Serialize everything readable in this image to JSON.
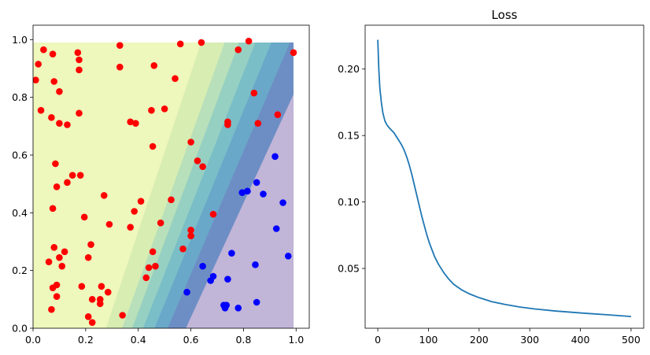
{
  "chart_data": [
    {
      "type": "scatter",
      "title": "",
      "xlabel": "",
      "ylabel": "",
      "xlim": [
        0,
        1.05
      ],
      "ylim": [
        0,
        1.05
      ],
      "grid": false,
      "legend": "none",
      "x_ticks": [
        "0.0",
        "0.2",
        "0.4",
        "0.6",
        "0.8",
        "1.0"
      ],
      "y_ticks": [
        "0.0",
        "0.2",
        "0.4",
        "0.6",
        "0.8",
        "1.0"
      ],
      "decision_regions": {
        "extent": [
          0,
          0.99
        ],
        "colors": [
          "#edf7b8",
          "#d6ecb1",
          "#b6dfbb",
          "#94cfc2",
          "#78bdc7",
          "#68a6c9",
          "#6e8cc4",
          "#c6b7d9"
        ],
        "boundaries": [
          {
            "y_at_x0": -0.76,
            "slope": 2.74
          },
          {
            "y_at_x0": -0.86,
            "slope": 2.54
          },
          {
            "y_at_x0": -0.92,
            "slope": 2.44
          },
          {
            "y_at_x0": -0.97,
            "slope": 2.32
          },
          {
            "y_at_x0": -1.03,
            "slope": 2.23
          },
          {
            "y_at_x0": -1.09,
            "slope": 2.13
          },
          {
            "y_at_x0": -1.15,
            "slope": 1.98
          }
        ]
      },
      "series": [
        {
          "color": "#ff0000",
          "points": [
            [
              0.01,
              0.86
            ],
            [
              0.02,
              0.915
            ],
            [
              0.03,
              0.755
            ],
            [
              0.04,
              0.965
            ],
            [
              0.075,
              0.95
            ],
            [
              0.08,
              0.855
            ],
            [
              0.07,
              0.73
            ],
            [
              0.1,
              0.82
            ],
            [
              0.085,
              0.57
            ],
            [
              0.1,
              0.71
            ],
            [
              0.13,
              0.705
            ],
            [
              0.09,
              0.49
            ],
            [
              0.15,
              0.53
            ],
            [
              0.13,
              0.505
            ],
            [
              0.18,
              0.53
            ],
            [
              0.17,
              0.955
            ],
            [
              0.175,
              0.93
            ],
            [
              0.175,
              0.895
            ],
            [
              0.175,
              0.745
            ],
            [
              0.33,
              0.98
            ],
            [
              0.33,
              0.905
            ],
            [
              0.46,
              0.91
            ],
            [
              0.56,
              0.985
            ],
            [
              0.64,
              0.99
            ],
            [
              0.82,
              0.995
            ],
            [
              0.78,
              0.965
            ],
            [
              0.99,
              0.955
            ],
            [
              0.54,
              0.865
            ],
            [
              0.5,
              0.76
            ],
            [
              0.45,
              0.755
            ],
            [
              0.37,
              0.715
            ],
            [
              0.39,
              0.71
            ],
            [
              0.74,
              0.715
            ],
            [
              0.74,
              0.705
            ],
            [
              0.84,
              0.815
            ],
            [
              0.855,
              0.71
            ],
            [
              0.93,
              0.74
            ],
            [
              0.6,
              0.645
            ],
            [
              0.455,
              0.63
            ],
            [
              0.625,
              0.58
            ],
            [
              0.645,
              0.56
            ],
            [
              0.27,
              0.46
            ],
            [
              0.41,
              0.44
            ],
            [
              0.525,
              0.445
            ],
            [
              0.385,
              0.405
            ],
            [
              0.075,
              0.415
            ],
            [
              0.195,
              0.385
            ],
            [
              0.29,
              0.36
            ],
            [
              0.37,
              0.35
            ],
            [
              0.485,
              0.365
            ],
            [
              0.685,
              0.395
            ],
            [
              0.6,
              0.34
            ],
            [
              0.6,
              0.32
            ],
            [
              0.57,
              0.275
            ],
            [
              0.08,
              0.28
            ],
            [
              0.12,
              0.265
            ],
            [
              0.1,
              0.245
            ],
            [
              0.22,
              0.29
            ],
            [
              0.21,
              0.245
            ],
            [
              0.06,
              0.23
            ],
            [
              0.11,
              0.215
            ],
            [
              0.455,
              0.265
            ],
            [
              0.43,
              0.175
            ],
            [
              0.44,
              0.21
            ],
            [
              0.465,
              0.215
            ],
            [
              0.09,
              0.15
            ],
            [
              0.075,
              0.14
            ],
            [
              0.185,
              0.145
            ],
            [
              0.26,
              0.145
            ],
            [
              0.285,
              0.125
            ],
            [
              0.09,
              0.11
            ],
            [
              0.225,
              0.1
            ],
            [
              0.255,
              0.1
            ],
            [
              0.255,
              0.085
            ],
            [
              0.07,
              0.065
            ],
            [
              0.21,
              0.04
            ],
            [
              0.225,
              0.02
            ],
            [
              0.34,
              0.045
            ]
          ]
        },
        {
          "color": "#0000ff",
          "points": [
            [
              0.92,
              0.595
            ],
            [
              0.85,
              0.505
            ],
            [
              0.795,
              0.47
            ],
            [
              0.815,
              0.475
            ],
            [
              0.875,
              0.465
            ],
            [
              0.95,
              0.435
            ],
            [
              0.925,
              0.345
            ],
            [
              0.97,
              0.25
            ],
            [
              0.755,
              0.26
            ],
            [
              0.845,
              0.22
            ],
            [
              0.645,
              0.215
            ],
            [
              0.685,
              0.18
            ],
            [
              0.675,
              0.165
            ],
            [
              0.74,
              0.17
            ],
            [
              0.585,
              0.125
            ],
            [
              0.725,
              0.08
            ],
            [
              0.735,
              0.08
            ],
            [
              0.73,
              0.07
            ],
            [
              0.78,
              0.07
            ],
            [
              0.85,
              0.09
            ]
          ]
        }
      ]
    },
    {
      "type": "line",
      "title": "Loss",
      "xlabel": "",
      "ylabel": "",
      "xlim": [
        -25,
        525
      ],
      "ylim": [
        0.005,
        0.233
      ],
      "grid": false,
      "legend": "none",
      "x_ticks": [
        "0",
        "100",
        "200",
        "300",
        "400",
        "500"
      ],
      "y_ticks": [
        "0.05",
        "0.10",
        "0.15",
        "0.20"
      ],
      "series": [
        {
          "color": "#1f77b4",
          "x": [
            0,
            2,
            4,
            7,
            10,
            14,
            18,
            22,
            27,
            32,
            37,
            42,
            47,
            52,
            57,
            62,
            67,
            72,
            77,
            82,
            87,
            92,
            97,
            102,
            107,
            112,
            120,
            130,
            140,
            150,
            165,
            180,
            200,
            225,
            250,
            280,
            310,
            350,
            400,
            450,
            500
          ],
          "y": [
            0.222,
            0.2,
            0.186,
            0.175,
            0.167,
            0.161,
            0.158,
            0.156,
            0.154,
            0.152,
            0.149,
            0.146,
            0.143,
            0.139,
            0.134,
            0.128,
            0.121,
            0.113,
            0.105,
            0.097,
            0.089,
            0.082,
            0.075,
            0.069,
            0.064,
            0.059,
            0.053,
            0.047,
            0.042,
            0.038,
            0.034,
            0.031,
            0.028,
            0.025,
            0.023,
            0.021,
            0.0195,
            0.018,
            0.0165,
            0.0152,
            0.0138
          ]
        }
      ]
    }
  ]
}
